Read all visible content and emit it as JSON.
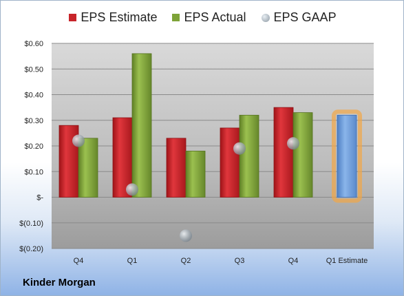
{
  "legend": {
    "estimate": "EPS Estimate",
    "actual": "EPS Actual",
    "gaap": "EPS GAAP"
  },
  "company": "Kinder Morgan",
  "colors": {
    "estimate": "#c8242a",
    "actual": "#7ea338",
    "gaap": "#9aa5ae",
    "forecast": "#6f9edb",
    "forecast_glow": "#f2a646"
  },
  "chart_data": {
    "type": "bar",
    "categories": [
      "Q4",
      "Q1",
      "Q2",
      "Q3",
      "Q4",
      "Q1 Estimate"
    ],
    "series": [
      {
        "name": "EPS Estimate",
        "values": [
          0.28,
          0.31,
          0.23,
          0.27,
          0.35,
          null
        ]
      },
      {
        "name": "EPS Actual",
        "values": [
          0.23,
          0.56,
          0.18,
          0.32,
          0.33,
          0.32
        ]
      },
      {
        "name": "EPS GAAP",
        "values": [
          0.22,
          0.03,
          -0.15,
          0.19,
          0.21,
          null
        ]
      }
    ],
    "y_ticks": [
      {
        "value": 0.6,
        "label": "$0.60"
      },
      {
        "value": 0.5,
        "label": "$0.50"
      },
      {
        "value": 0.4,
        "label": "$0.40"
      },
      {
        "value": 0.3,
        "label": "$0.30"
      },
      {
        "value": 0.2,
        "label": "$0.20"
      },
      {
        "value": 0.1,
        "label": "$0.10"
      },
      {
        "value": 0,
        "label": "$-"
      },
      {
        "value": -0.1,
        "label": "$(0.10)"
      },
      {
        "value": -0.2,
        "label": "$(0.20)"
      }
    ],
    "ylim": [
      -0.2,
      0.6
    ],
    "grid": true,
    "legend_position": "top"
  }
}
